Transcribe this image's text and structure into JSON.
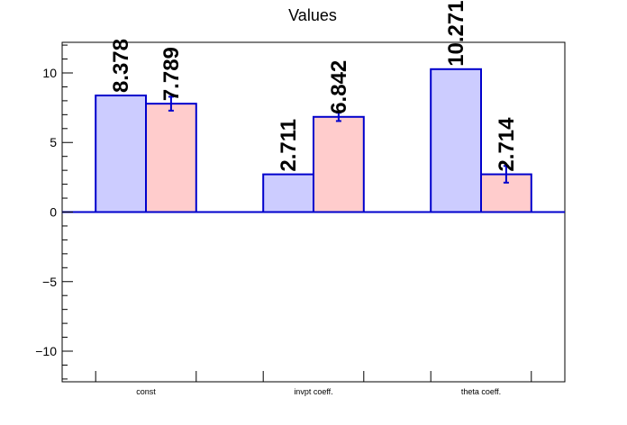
{
  "chart_data": {
    "type": "bar",
    "title": "Values",
    "categories": [
      "const",
      "invpt coeff.",
      "theta coeff."
    ],
    "series": [
      {
        "values": [
          8.378,
          2.711,
          10.271
        ],
        "color": "#ccccff",
        "errors": [
          0,
          0,
          0
        ]
      },
      {
        "values": [
          7.789,
          6.842,
          2.714
        ],
        "color": "#ffcccc",
        "errors": [
          0.5,
          0.3,
          0.6
        ]
      }
    ],
    "data_labels": [
      [
        "8.378",
        "2.711",
        "10.271"
      ],
      [
        "7.789",
        "6.842",
        "2.714"
      ]
    ],
    "y_ticks": [
      -10,
      -5,
      0,
      5,
      10
    ],
    "ylim": [
      -12.2,
      12.2
    ],
    "bar_edge_color": "#0000cc",
    "xlabel": "",
    "ylabel": "",
    "grid": false
  }
}
